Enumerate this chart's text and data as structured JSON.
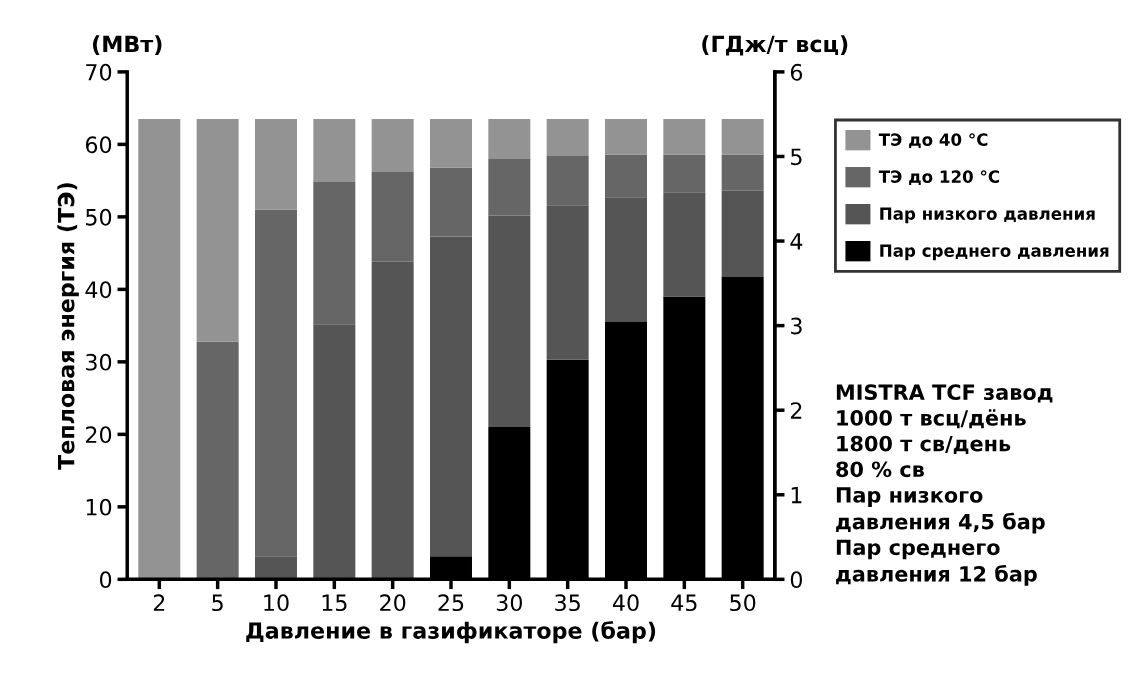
{
  "chart_data": {
    "type": "bar",
    "stacked": true,
    "categories": [
      "2",
      "5",
      "10",
      "15",
      "20",
      "25",
      "30",
      "35",
      "40",
      "45",
      "50"
    ],
    "xlabel": "Давление в газификаторе (бар)",
    "ylabel": "Тепловая энергия (ТЭ)",
    "y2label": "(ГДж/т всц)",
    "series": [
      {
        "name": "Пар среднего давления",
        "color": "#000000",
        "values": [
          0,
          0,
          0,
          0,
          0,
          3.2,
          21,
          30.3,
          35.5,
          39,
          41.7
        ]
      },
      {
        "name": "Пар низкого давления",
        "color": "#555555",
        "values": [
          0,
          0,
          3.2,
          35.2,
          43.8,
          44.1,
          29.2,
          21.3,
          17.2,
          14.4,
          11.9
        ]
      },
      {
        "name": "ТЭ до 120 °C",
        "color": "#666666",
        "values": [
          0,
          32.8,
          47.8,
          19.6,
          12.4,
          9.5,
          7.8,
          6.8,
          5.9,
          5.2,
          5.0
        ]
      },
      {
        "name": "ТЭ до 40 °C",
        "color": "#939393",
        "values": [
          63.5,
          30.7,
          12.5,
          8.7,
          7.3,
          6.7,
          5.5,
          5.1,
          4.9,
          4.9,
          4.9
        ]
      }
    ],
    "ylim": [
      0,
      70
    ],
    "yticks": [
      0,
      10,
      20,
      30,
      40,
      50,
      60,
      70
    ],
    "y2lim": [
      0,
      6
    ],
    "y2ticks": [
      0,
      1,
      2,
      3,
      4,
      5,
      6
    ],
    "grid": false,
    "legend": "right",
    "annotations": [
      "(МВт)",
      "MISTRA TCF завод\n1000 т всц/дёнь\n1800 т св/день\n80 % св\nПар низкого\nдавления 4,5 бар\nПар среднего\nдавления 12 бар"
    ]
  }
}
